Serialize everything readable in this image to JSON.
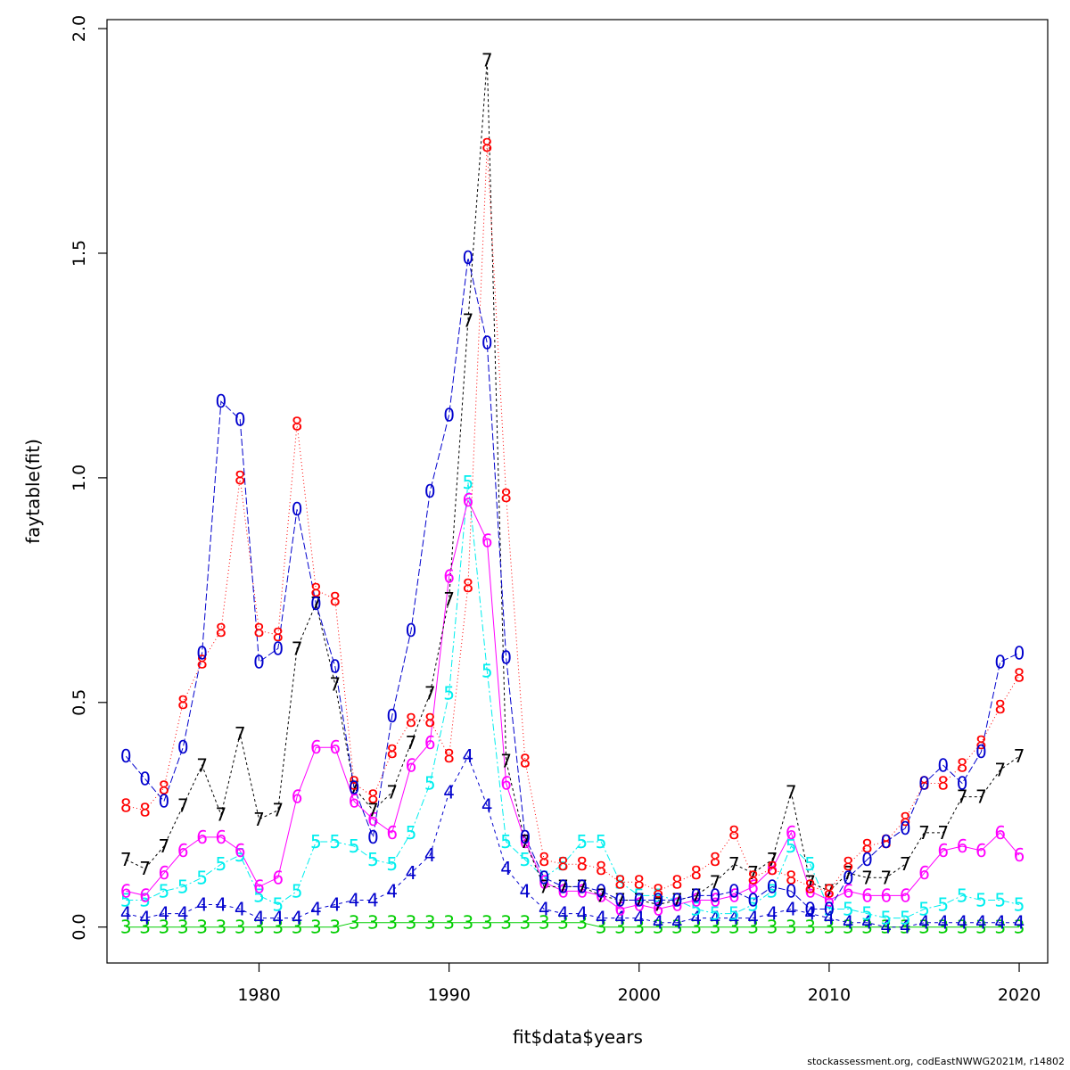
{
  "chart_data": {
    "type": "line",
    "xlabel": "fit$data$years",
    "ylabel": "faytable(fit)",
    "xlim": [
      1972,
      2021.5
    ],
    "ylim": [
      -0.08,
      2.02
    ],
    "x_ticks": [
      1980,
      1990,
      2000,
      2010,
      2020
    ],
    "y_ticks": [
      0.0,
      0.5,
      1.0,
      1.5,
      2.0
    ],
    "y_tick_labels": [
      "0.0",
      "0.5",
      "1.0",
      "1.5",
      "2.0"
    ],
    "grid": false,
    "x": [
      1973,
      1974,
      1975,
      1976,
      1977,
      1978,
      1979,
      1980,
      1981,
      1982,
      1983,
      1984,
      1985,
      1986,
      1987,
      1988,
      1989,
      1990,
      1991,
      1992,
      1993,
      1994,
      1995,
      1996,
      1997,
      1998,
      1999,
      2000,
      2001,
      2002,
      2003,
      2004,
      2005,
      2006,
      2007,
      2008,
      2009,
      2010,
      2011,
      2012,
      2013,
      2014,
      2015,
      2016,
      2017,
      2018,
      2019,
      2020
    ],
    "series": [
      {
        "marker": "3",
        "color": "#00CD00",
        "dash": "none",
        "values": [
          0.0,
          0.0,
          0.0,
          0.0,
          0.0,
          0.0,
          0.0,
          0.0,
          0.0,
          0.0,
          0.0,
          0.0,
          0.01,
          0.01,
          0.01,
          0.01,
          0.01,
          0.01,
          0.01,
          0.01,
          0.01,
          0.01,
          0.01,
          0.01,
          0.01,
          0.0,
          0.0,
          0.0,
          0.0,
          0.0,
          0.0,
          0.0,
          0.0,
          0.0,
          0.0,
          0.0,
          0.0,
          0.0,
          0.0,
          0.0,
          0.0,
          0.0,
          0.0,
          0.0,
          0.0,
          0.0,
          0.0,
          0.0
        ]
      },
      {
        "marker": "4",
        "color": "#0000CD",
        "dash": "4 4",
        "values": [
          0.03,
          0.02,
          0.03,
          0.03,
          0.05,
          0.05,
          0.04,
          0.02,
          0.02,
          0.02,
          0.04,
          0.05,
          0.06,
          0.06,
          0.08,
          0.12,
          0.16,
          0.3,
          0.38,
          0.27,
          0.13,
          0.08,
          0.04,
          0.03,
          0.03,
          0.02,
          0.02,
          0.02,
          0.01,
          0.01,
          0.02,
          0.02,
          0.02,
          0.02,
          0.03,
          0.04,
          0.03,
          0.02,
          0.01,
          0.01,
          0.0,
          0.0,
          0.01,
          0.01,
          0.01,
          0.01,
          0.01,
          0.01
        ]
      },
      {
        "marker": "5",
        "color": "#00EEEE",
        "dash": "8 3 2 3",
        "values": [
          0.06,
          0.06,
          0.08,
          0.09,
          0.11,
          0.14,
          0.16,
          0.07,
          0.05,
          0.08,
          0.19,
          0.19,
          0.18,
          0.15,
          0.14,
          0.21,
          0.32,
          0.52,
          0.99,
          0.57,
          0.19,
          0.15,
          0.11,
          0.14,
          0.19,
          0.19,
          0.1,
          0.07,
          0.07,
          0.06,
          0.04,
          0.03,
          0.03,
          0.05,
          0.08,
          0.18,
          0.14,
          0.04,
          0.04,
          0.03,
          0.02,
          0.02,
          0.04,
          0.05,
          0.07,
          0.06,
          0.06,
          0.05
        ]
      },
      {
        "marker": "6",
        "color": "#FF00FF",
        "dash": "none",
        "values": [
          0.08,
          0.07,
          0.12,
          0.17,
          0.2,
          0.2,
          0.17,
          0.09,
          0.11,
          0.29,
          0.4,
          0.4,
          0.28,
          0.24,
          0.21,
          0.36,
          0.41,
          0.78,
          0.95,
          0.86,
          0.32,
          0.19,
          0.1,
          0.08,
          0.08,
          0.07,
          0.04,
          0.05,
          0.04,
          0.05,
          0.06,
          0.06,
          0.07,
          0.09,
          0.13,
          0.21,
          0.08,
          0.06,
          0.08,
          0.07,
          0.07,
          0.07,
          0.12,
          0.17,
          0.18,
          0.17,
          0.21,
          0.16
        ]
      },
      {
        "marker": "7",
        "color": "#000000",
        "dash": "3 3",
        "values": [
          0.15,
          0.13,
          0.18,
          0.27,
          0.36,
          0.25,
          0.43,
          0.24,
          0.26,
          0.62,
          0.72,
          0.54,
          0.31,
          0.26,
          0.3,
          0.41,
          0.52,
          0.73,
          1.35,
          1.93,
          0.37,
          0.19,
          0.09,
          0.09,
          0.09,
          0.07,
          0.06,
          0.06,
          0.05,
          0.06,
          0.07,
          0.1,
          0.14,
          0.12,
          0.15,
          0.3,
          0.1,
          0.08,
          0.12,
          0.11,
          0.11,
          0.14,
          0.21,
          0.21,
          0.29,
          0.29,
          0.35,
          0.38
        ]
      },
      {
        "marker": "8",
        "color": "#FF0000",
        "dash": "1 3",
        "values": [
          0.27,
          0.26,
          0.31,
          0.5,
          0.59,
          0.66,
          1.0,
          0.66,
          0.65,
          1.12,
          0.75,
          0.73,
          0.32,
          0.29,
          0.39,
          0.46,
          0.46,
          0.38,
          0.76,
          1.74,
          0.96,
          0.37,
          0.15,
          0.14,
          0.14,
          0.13,
          0.1,
          0.1,
          0.08,
          0.1,
          0.12,
          0.15,
          0.21,
          0.11,
          0.13,
          0.11,
          0.09,
          0.08,
          0.14,
          0.18,
          0.19,
          0.24,
          0.32,
          0.32,
          0.36,
          0.41,
          0.49,
          0.56
        ]
      },
      {
        "marker": "0",
        "color": "#0000CD",
        "dash": "8 3",
        "values": [
          0.38,
          0.33,
          0.28,
          0.4,
          0.61,
          1.17,
          1.13,
          0.59,
          0.62,
          0.93,
          0.72,
          0.58,
          0.31,
          0.2,
          0.47,
          0.66,
          0.97,
          1.14,
          1.49,
          1.3,
          0.6,
          0.2,
          0.11,
          0.09,
          0.09,
          0.08,
          0.06,
          0.06,
          0.06,
          0.06,
          0.07,
          0.07,
          0.08,
          0.06,
          0.09,
          0.08,
          0.04,
          0.04,
          0.11,
          0.15,
          0.19,
          0.22,
          0.32,
          0.36,
          0.32,
          0.39,
          0.59,
          0.61
        ]
      }
    ]
  },
  "footer": "stockassessment.org, codEastNWWG2021M, r14802"
}
